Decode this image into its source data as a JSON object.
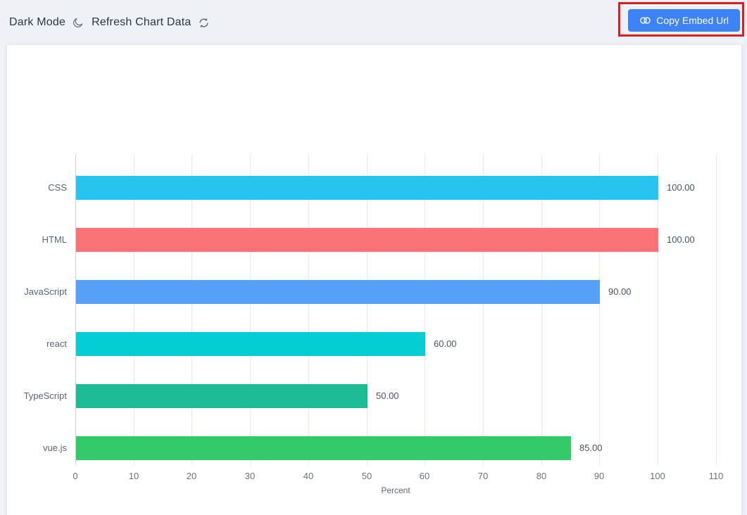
{
  "toolbar": {
    "dark_mode_label": "Dark Mode",
    "refresh_label": "Refresh Chart Data",
    "copy_embed_label": "Copy Embed Url"
  },
  "icons": {
    "moon": "dark-mode-moon-icon",
    "refresh": "refresh-icon",
    "link": "chain-link-icon"
  },
  "colors": {
    "page_bg": "#eef1f6",
    "panel_bg": "#ffffff",
    "button_blue": "#3d82f7",
    "annotation_red": "#e11d1d",
    "gridline": "#e5e8ec",
    "axis_line": "#c9cdd6",
    "toolbar_text": "#2b3647",
    "icon_gray": "#6a7078"
  },
  "chart_data": {
    "type": "bar",
    "orientation": "horizontal",
    "title": "",
    "categories": [
      "CSS",
      "HTML",
      "JavaScript",
      "react",
      "TypeScript",
      "vue.js"
    ],
    "values": [
      100,
      100,
      90,
      60,
      50,
      85
    ],
    "value_labels": [
      "100.00",
      "100.00",
      "90.00",
      "60.00",
      "50.00",
      "85.00"
    ],
    "bar_colors": [
      "#25C5F0",
      "#FA7176",
      "#57A0FA",
      "#02CDD2",
      "#1DBB95",
      "#34C969"
    ],
    "xlabel": "Percent",
    "ylabel": "",
    "xlim": [
      0,
      110
    ],
    "xticks": [
      0,
      10,
      20,
      30,
      40,
      50,
      60,
      70,
      80,
      90,
      100,
      110
    ],
    "grid": true,
    "legend": false
  }
}
